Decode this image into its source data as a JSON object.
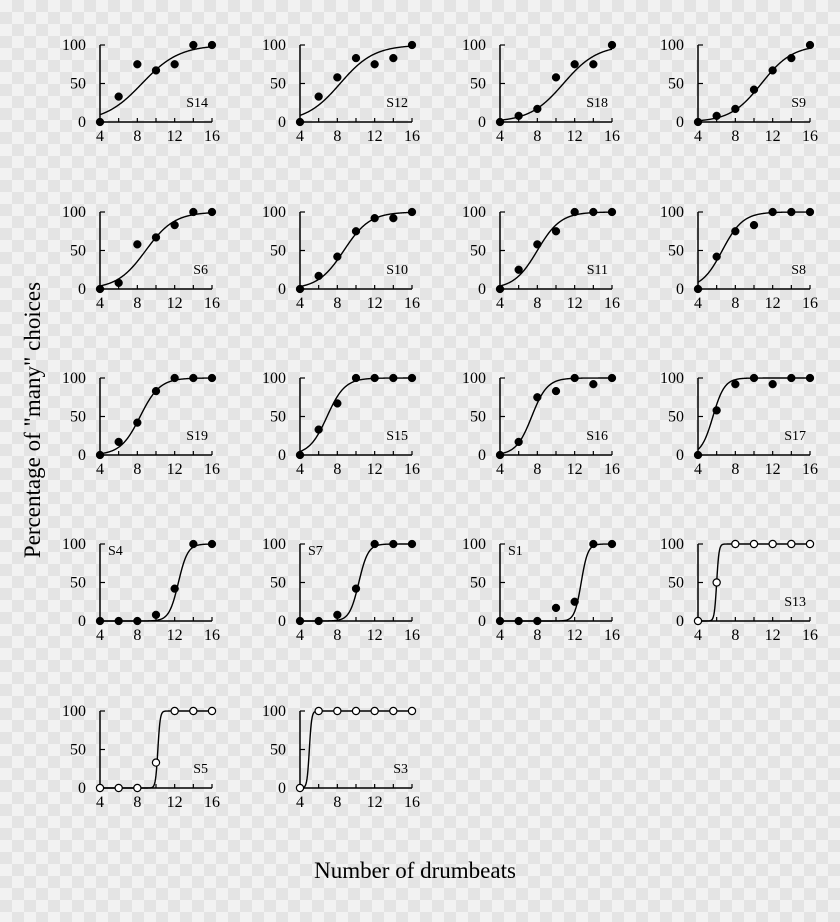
{
  "chart_data": {
    "type": "scatter",
    "ylabel": "Percentage of \"many\" choices",
    "xlabel": "Number of drumbeats",
    "x_ticks": [
      4,
      8,
      12,
      16
    ],
    "y_ticks": [
      0,
      50,
      100
    ],
    "xlim": [
      4,
      16
    ],
    "ylim": [
      0,
      100
    ],
    "x": [
      4,
      6,
      8,
      10,
      12,
      14,
      16
    ],
    "panels": [
      {
        "label": "S14",
        "label_pos": "bottom-right",
        "marker": "filled",
        "y": [
          0,
          33,
          75,
          67,
          75,
          100,
          100
        ],
        "fit": {
          "midpoint": 8.5,
          "slope": 0.5
        }
      },
      {
        "label": "S12",
        "label_pos": "bottom-right",
        "marker": "filled",
        "y": [
          0,
          33,
          58,
          83,
          75,
          83,
          100
        ],
        "fit": {
          "midpoint": 8.3,
          "slope": 0.55
        }
      },
      {
        "label": "S18",
        "label_pos": "bottom-right",
        "marker": "filled",
        "y": [
          0,
          8,
          17,
          58,
          75,
          75,
          100
        ],
        "fit": {
          "midpoint": 10.8,
          "slope": 0.55
        }
      },
      {
        "label": "S9",
        "label_pos": "bottom-right",
        "marker": "filled",
        "y": [
          0,
          8,
          17,
          42,
          67,
          83,
          100
        ],
        "fit": {
          "midpoint": 10.8,
          "slope": 0.6
        }
      },
      {
        "label": "S6",
        "label_pos": "bottom-right",
        "marker": "filled",
        "y": [
          0,
          8,
          58,
          67,
          83,
          100,
          100
        ],
        "fit": {
          "midpoint": 8.9,
          "slope": 0.65
        }
      },
      {
        "label": "S10",
        "label_pos": "bottom-right",
        "marker": "filled",
        "y": [
          0,
          17,
          42,
          75,
          92,
          92,
          100
        ],
        "fit": {
          "midpoint": 8.7,
          "slope": 0.72
        }
      },
      {
        "label": "S11",
        "label_pos": "bottom-right",
        "marker": "filled",
        "y": [
          0,
          25,
          58,
          75,
          100,
          100,
          100
        ],
        "fit": {
          "midpoint": 8.0,
          "slope": 0.8
        }
      },
      {
        "label": "S8",
        "label_pos": "bottom-right",
        "marker": "filled",
        "y": [
          0,
          42,
          75,
          83,
          100,
          100,
          100
        ],
        "fit": {
          "midpoint": 6.6,
          "slope": 0.9
        }
      },
      {
        "label": "S19",
        "label_pos": "bottom-right",
        "marker": "filled",
        "y": [
          0,
          17,
          42,
          83,
          100,
          100,
          100
        ],
        "fit": {
          "midpoint": 8.3,
          "slope": 0.95
        }
      },
      {
        "label": "S15",
        "label_pos": "bottom-right",
        "marker": "filled",
        "y": [
          0,
          33,
          67,
          100,
          100,
          100,
          100
        ],
        "fit": {
          "midpoint": 6.9,
          "slope": 1.05
        }
      },
      {
        "label": "S16",
        "label_pos": "bottom-right",
        "marker": "filled",
        "y": [
          0,
          17,
          75,
          83,
          100,
          92,
          100
        ],
        "fit": {
          "midpoint": 7.4,
          "slope": 1.2
        }
      },
      {
        "label": "S17",
        "label_pos": "bottom-right",
        "marker": "filled",
        "y": [
          0,
          58,
          92,
          100,
          92,
          100,
          100
        ],
        "fit": {
          "midpoint": 5.6,
          "slope": 1.6
        }
      },
      {
        "label": "S4",
        "label_pos": "top-left",
        "marker": "filled",
        "y": [
          0,
          0,
          0,
          8,
          42,
          100,
          100
        ],
        "fit": {
          "midpoint": 12.4,
          "slope": 2.0
        }
      },
      {
        "label": "S7",
        "label_pos": "top-left",
        "marker": "filled",
        "y": [
          0,
          0,
          8,
          42,
          100,
          100,
          100
        ],
        "fit": {
          "midpoint": 10.3,
          "slope": 2.0
        }
      },
      {
        "label": "S1",
        "label_pos": "top-left",
        "marker": "filled",
        "y": [
          0,
          0,
          0,
          17,
          25,
          100,
          100
        ],
        "fit": {
          "midpoint": 12.7,
          "slope": 2.8
        }
      },
      {
        "label": "S13",
        "label_pos": "bottom-right",
        "marker": "open",
        "y": [
          0,
          50,
          100,
          100,
          100,
          100,
          100
        ],
        "fit": {
          "midpoint": 6.0,
          "slope": 8
        }
      },
      {
        "label": "S5",
        "label_pos": "bottom-right",
        "marker": "open",
        "y": [
          0,
          0,
          0,
          33,
          100,
          100,
          100
        ],
        "fit": {
          "midpoint": 10.2,
          "slope": 8
        }
      },
      {
        "label": "S3",
        "label_pos": "bottom-right",
        "marker": "open",
        "y": [
          0,
          100,
          100,
          100,
          100,
          100,
          100
        ],
        "fit": {
          "midpoint": 5.0,
          "slope": 8
        }
      }
    ],
    "legend": "none",
    "grid": false
  }
}
